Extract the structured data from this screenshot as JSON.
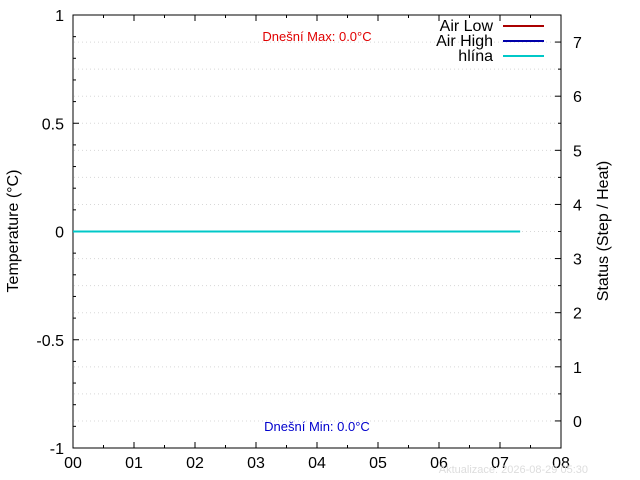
{
  "chart_data": {
    "type": "line",
    "xlabel": "",
    "ylabel": "Temperature (°C)",
    "y2label": "Status (Step / Heat)",
    "x_ticks": [
      "00",
      "01",
      "02",
      "03",
      "04",
      "05",
      "06",
      "07",
      "08"
    ],
    "xlim": [
      0,
      8
    ],
    "ylim": [
      -1,
      1
    ],
    "y_ticks": [
      -1,
      -0.5,
      0,
      0.5,
      1
    ],
    "y_tick_labels": [
      "-1",
      "-0.5",
      "0",
      "0.5",
      "1"
    ],
    "y2lim": [
      -0.5,
      7.5
    ],
    "y2_ticks": [
      0,
      1,
      2,
      3,
      4,
      5,
      6,
      7
    ],
    "y2_tick_labels": [
      "0",
      "1",
      "2",
      "3",
      "4",
      "5",
      "6",
      "7"
    ],
    "grid": true,
    "legend_position": "top-right",
    "series": [
      {
        "name": "Air Low",
        "color": "#aa0000",
        "x": [],
        "y": []
      },
      {
        "name": "Air High",
        "color": "#0000aa",
        "x": [],
        "y": []
      },
      {
        "name": "hlína",
        "color": "#00c8c8",
        "x": [
          0,
          7.33
        ],
        "y": [
          0,
          0
        ]
      }
    ],
    "annotations": {
      "max": {
        "text": "Dnešní Max: 0.0°C",
        "color": "#e00000"
      },
      "min": {
        "text": "Dnešní Min: 0.0°C",
        "color": "#0000cc"
      }
    },
    "footer": "Aktualizace: 2026-08-29 05:30"
  }
}
